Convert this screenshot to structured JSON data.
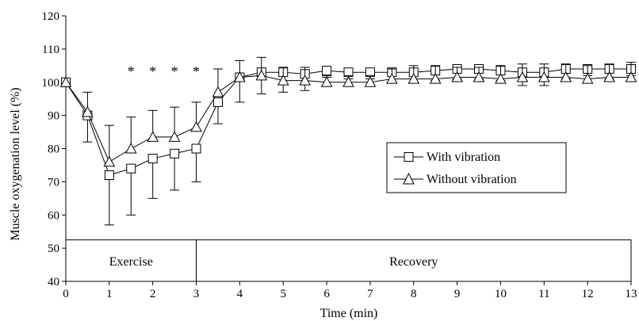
{
  "chart_data": {
    "type": "line",
    "xlabel": "Time (min)",
    "ylabel": "Muscle oxygenation level (%)",
    "xlim": [
      0,
      13
    ],
    "ylim": [
      40,
      120
    ],
    "xticks": [
      "0",
      "1",
      "2",
      "3",
      "4",
      "5",
      "6",
      "7",
      "8",
      "9",
      "10",
      "11",
      "12",
      "13"
    ],
    "yticks": [
      "40",
      "50",
      "60",
      "70",
      "80",
      "90",
      "100",
      "110",
      "120"
    ],
    "grid": false,
    "legend_placement": "center-right",
    "series": [
      {
        "name": "With vibration",
        "marker": "square",
        "x": [
          0,
          0.5,
          1,
          1.5,
          2,
          2.5,
          3,
          3.5,
          4,
          4.5,
          5,
          5.5,
          6,
          6.5,
          7,
          7.5,
          8,
          8.5,
          9,
          9.5,
          10,
          10.5,
          11,
          11.5,
          12,
          12.5,
          13
        ],
        "y": [
          100,
          90,
          72,
          74,
          77,
          78.5,
          80,
          94,
          101.5,
          103,
          103,
          102.5,
          103.5,
          103,
          103,
          103,
          103,
          103.5,
          104,
          104,
          103.5,
          103,
          103,
          104,
          104,
          104,
          104
        ],
        "err": [
          0,
          8,
          15,
          14,
          12,
          11,
          10,
          6.5,
          7.5,
          6.5,
          6,
          5,
          2,
          2,
          2,
          3,
          3,
          3,
          3,
          3,
          3,
          4,
          4,
          3,
          2,
          3,
          2
        ]
      },
      {
        "name": "Without vibration",
        "marker": "triangle",
        "x": [
          0,
          0.5,
          1,
          1.5,
          2,
          2.5,
          3,
          3.5,
          4,
          4.5,
          5,
          5.5,
          6,
          6.5,
          7,
          7.5,
          8,
          8.5,
          9,
          9.5,
          10,
          10.5,
          11,
          11.5,
          12,
          12.5,
          13
        ],
        "y": [
          100,
          91,
          76,
          80,
          83.5,
          83.5,
          86.5,
          97,
          101.5,
          102,
          100.5,
          100.5,
          100,
          100,
          100,
          101,
          101,
          101,
          101.5,
          101.5,
          101,
          101.5,
          101.5,
          101.5,
          101,
          101.5,
          101.5
        ],
        "err": [
          0,
          6,
          11,
          9.5,
          8,
          9,
          7.5,
          7,
          5,
          5.5,
          4,
          4,
          2,
          2,
          2,
          3,
          4,
          4,
          3,
          3,
          4,
          4,
          4,
          4,
          4,
          4,
          4.5
        ]
      }
    ],
    "significance_markers": {
      "symbol": "*",
      "x": [
        1.5,
        2,
        2.5,
        3
      ]
    },
    "phases": [
      {
        "label": "Exercise",
        "start": 0,
        "end": 3
      },
      {
        "label": "Recovery",
        "start": 3,
        "end": 13
      }
    ]
  }
}
